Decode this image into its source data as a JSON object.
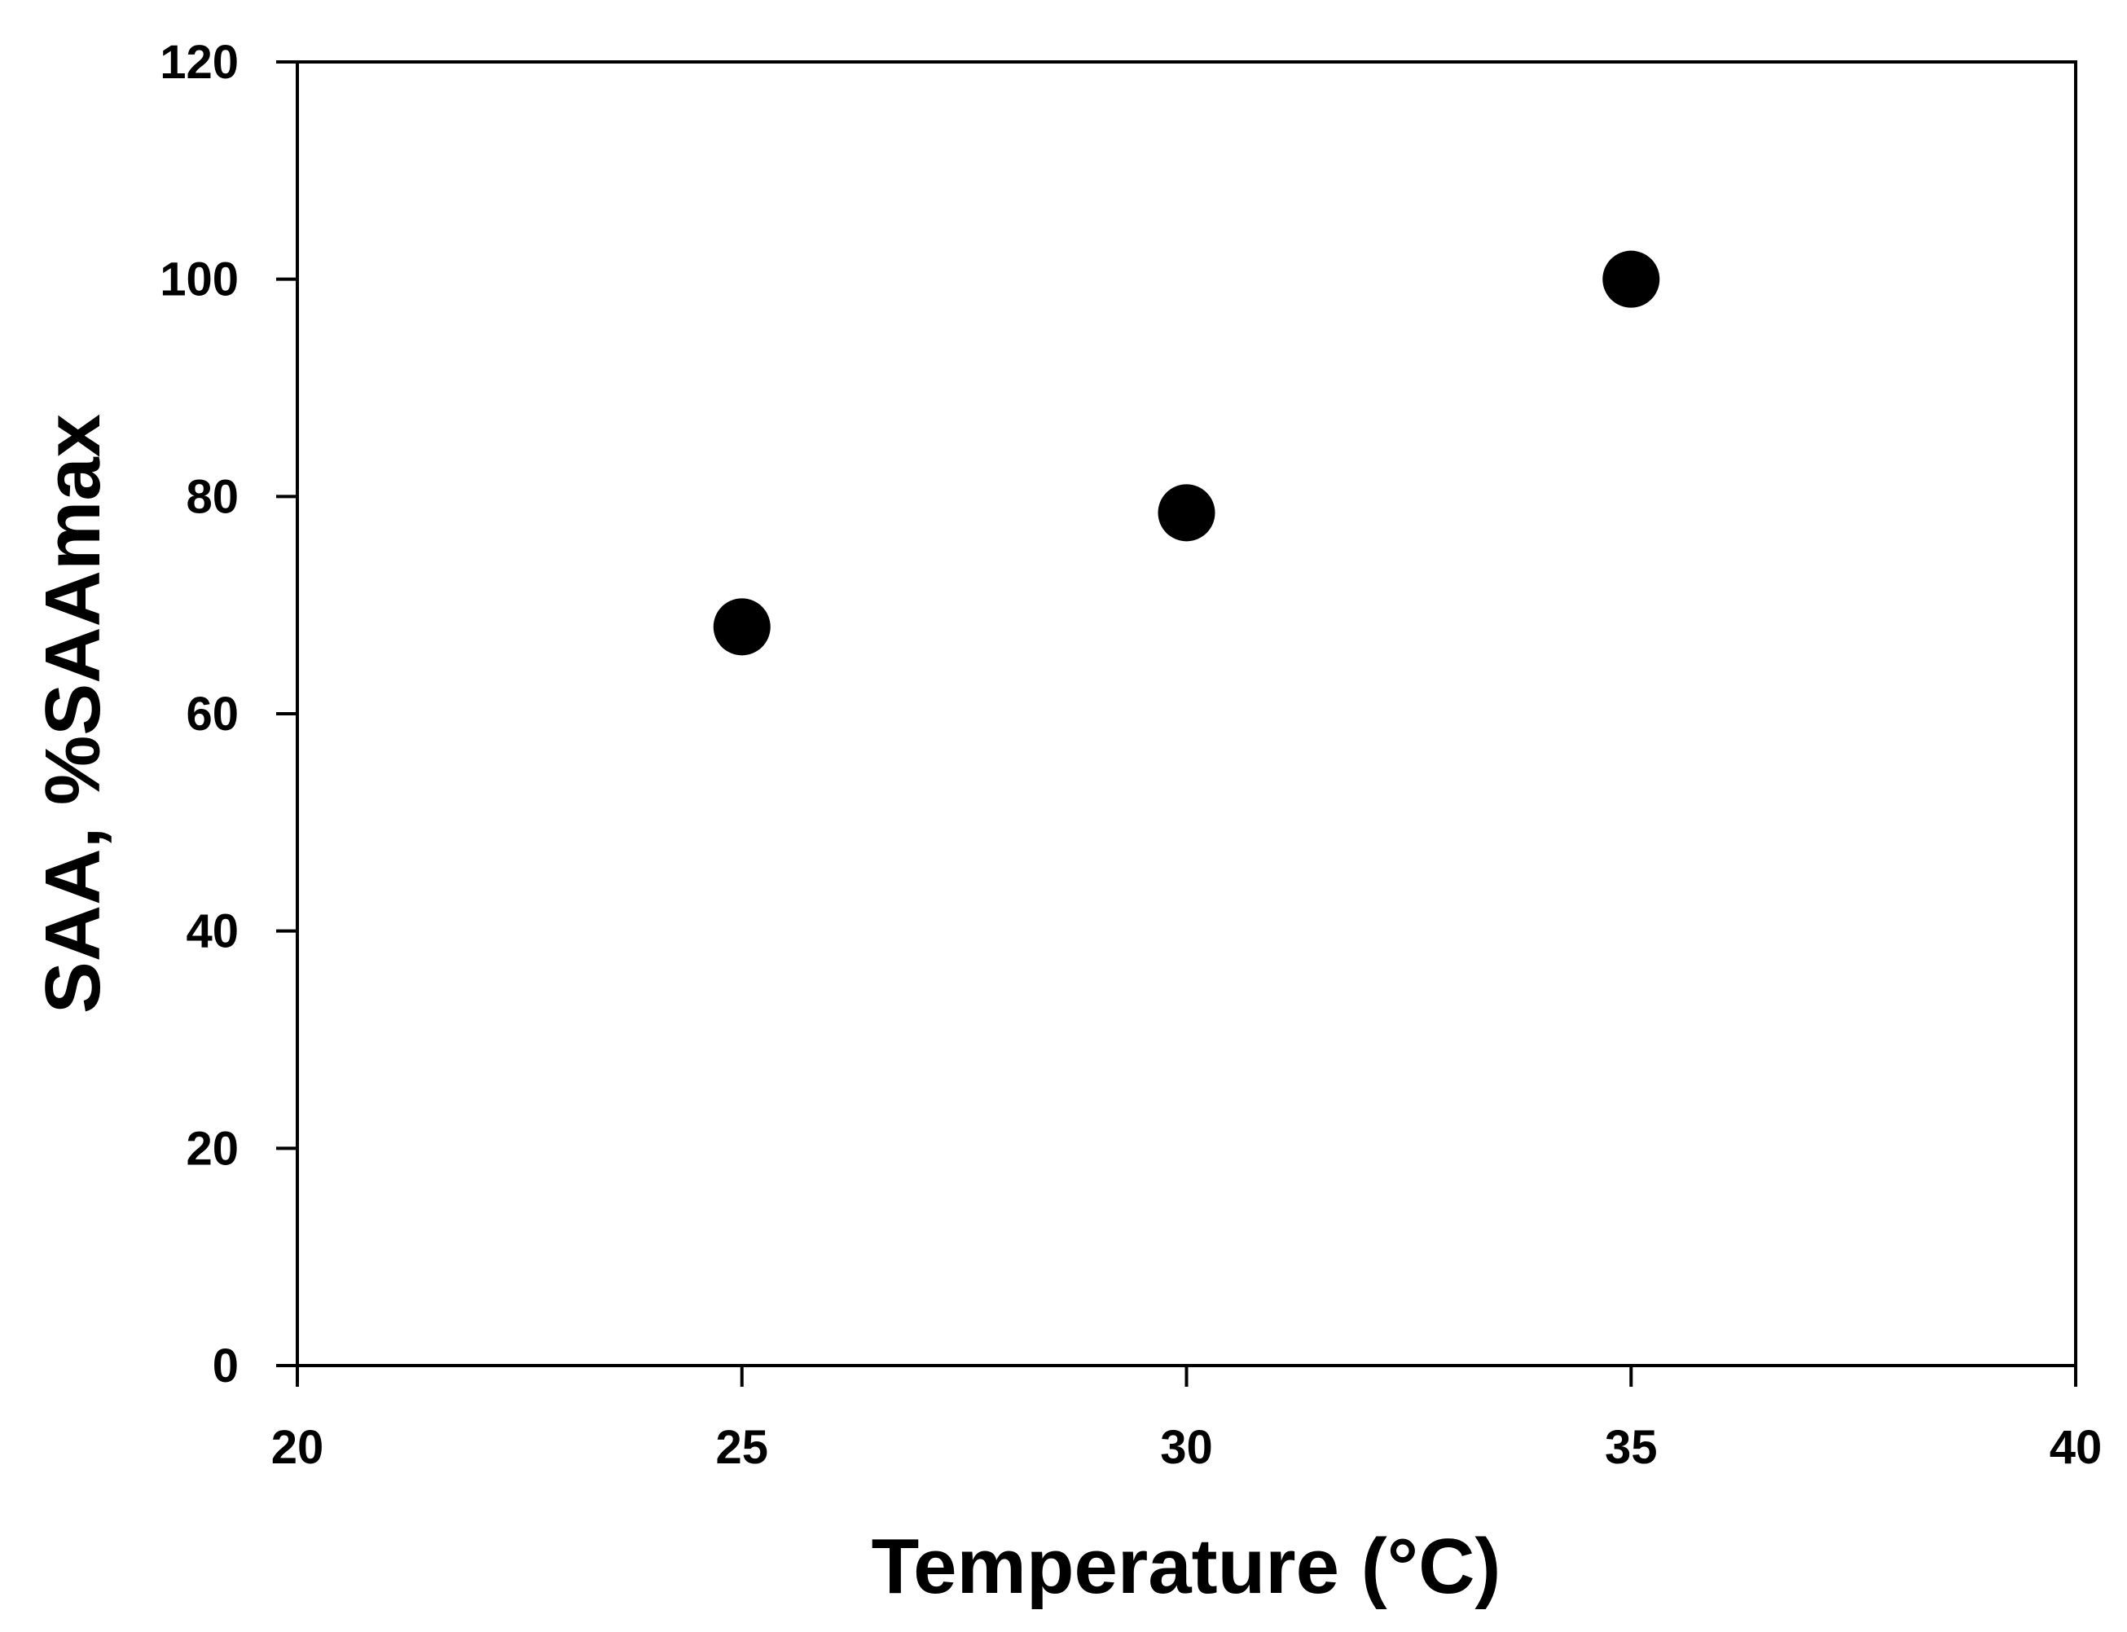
{
  "chart_data": {
    "type": "scatter",
    "xlabel": "Temperature (°C)",
    "ylabel": "SAA, %SAAmax",
    "xlim": [
      20,
      40
    ],
    "ylim": [
      0,
      120
    ],
    "xticks": [
      20,
      25,
      30,
      35,
      40
    ],
    "yticks": [
      0,
      20,
      40,
      60,
      80,
      100,
      120
    ],
    "grid": false,
    "legend": "none",
    "series": [
      {
        "color": "#000000",
        "marker": "circle",
        "x": [
          25,
          30,
          35
        ],
        "y": [
          68,
          78.5,
          100
        ]
      }
    ]
  }
}
